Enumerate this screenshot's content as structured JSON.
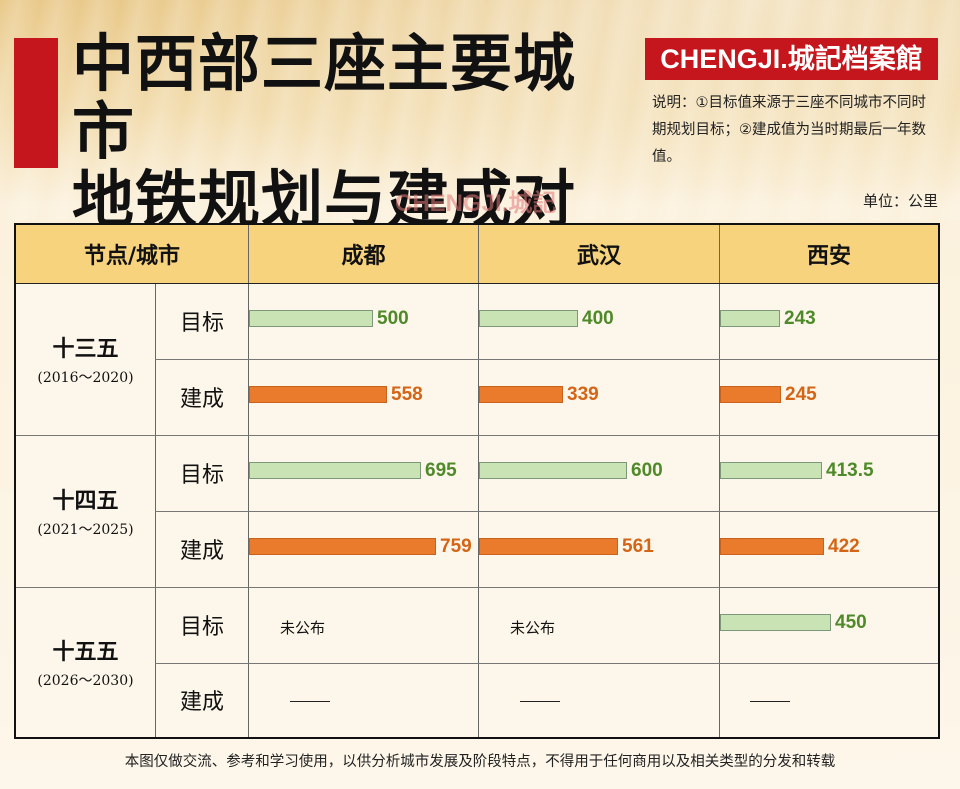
{
  "header": {
    "title_line1": "中西部三座主要城市",
    "title_line2": "地铁规划与建成对比",
    "logo_text": "CHENGJI.城記档案館",
    "note": "说明：①目标值来源于三座不同城市不同时期规划目标；②建成值为当时期最后一年数值。",
    "watermark": "CHENGJI.城記",
    "unit": "单位：公里"
  },
  "table": {
    "corner_header": "节点/城市",
    "cities": [
      "成都",
      "武汉",
      "西安"
    ],
    "periods": [
      {
        "name": "十三五",
        "years": "(2016～2020)"
      },
      {
        "name": "十四五",
        "years": "(2021～2025)"
      },
      {
        "name": "十五五",
        "years": "(2026～2030)"
      }
    ],
    "target_label": "目标",
    "built_label": "建成",
    "not_published": "未公布",
    "dash": "——"
  },
  "chart_data": {
    "type": "bar",
    "categories": [
      "十三五",
      "十四五",
      "十五五"
    ],
    "cities": [
      "成都",
      "武汉",
      "西安"
    ],
    "series": [
      {
        "city": "成都",
        "target": [
          500,
          695,
          null
        ],
        "built": [
          558,
          759,
          null
        ],
        "target_labels": [
          "500",
          "695",
          null
        ],
        "built_labels": [
          "558",
          "759",
          null
        ]
      },
      {
        "city": "武汉",
        "target": [
          400,
          600,
          null
        ],
        "built": [
          339,
          561,
          null
        ],
        "target_labels": [
          "400",
          "600",
          null
        ],
        "built_labels": [
          "339",
          "561",
          null
        ]
      },
      {
        "city": "西安",
        "target": [
          243,
          413.5,
          450
        ],
        "built": [
          245,
          422,
          null
        ],
        "target_labels": [
          "243",
          "413.5",
          "450"
        ],
        "built_labels": [
          "245",
          "422",
          null
        ]
      }
    ],
    "colors": {
      "target": "#c9e3b4",
      "built": "#ea7a2c",
      "target_text": "#4f8a2a",
      "built_text": "#d56516"
    },
    "unit": "公里"
  },
  "footer": "本图仅做交流、参考和学习使用，以供分析城市发展及阶段特点，不得用于任何商用以及相关类型的分发和转载"
}
